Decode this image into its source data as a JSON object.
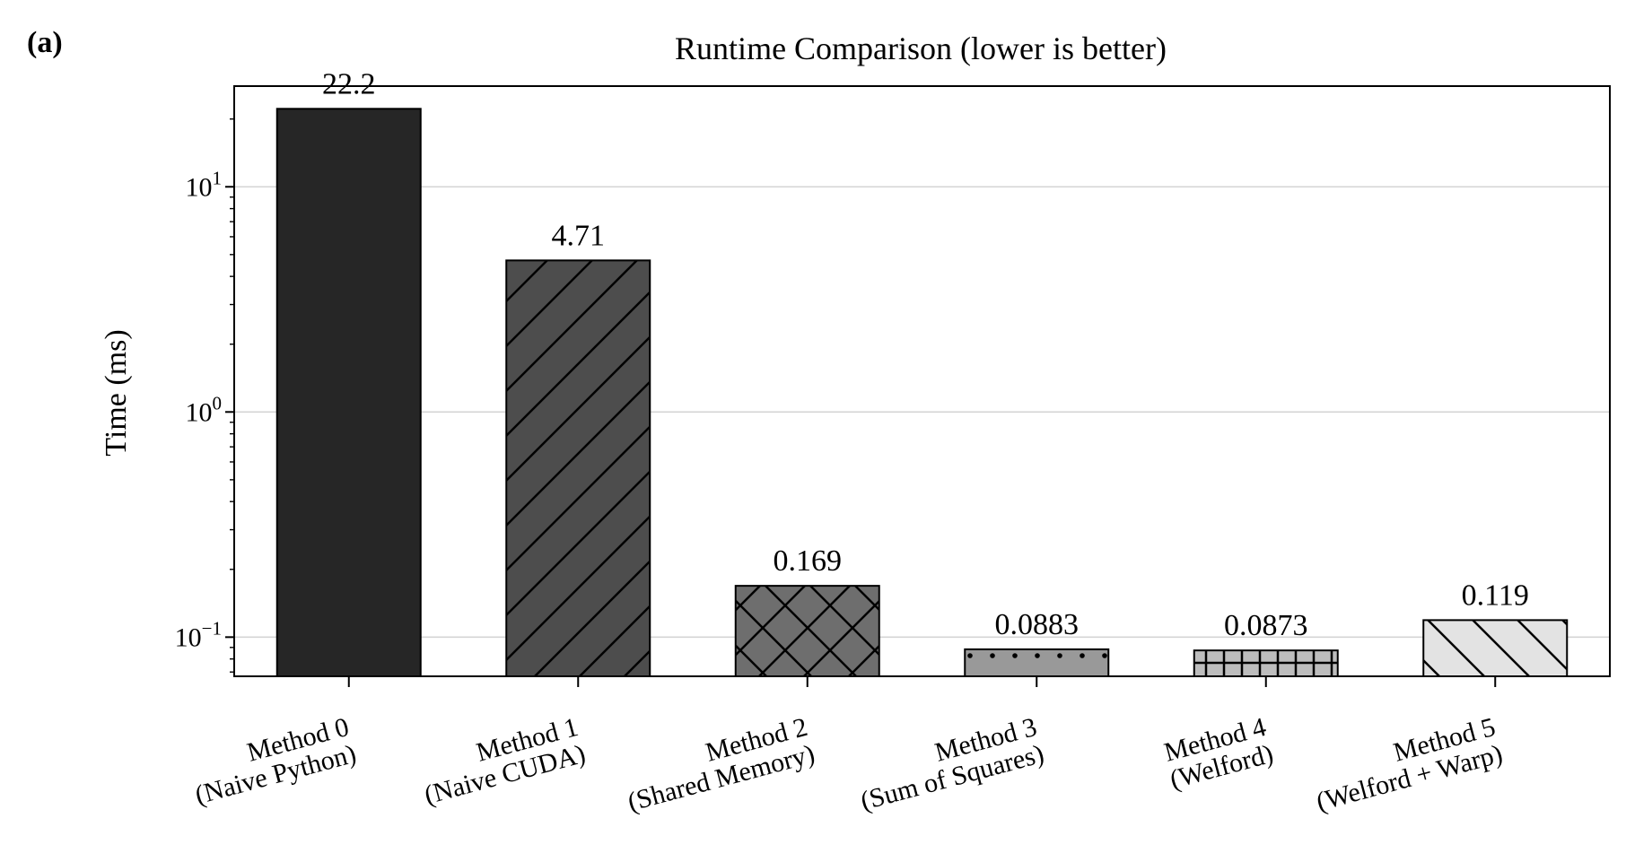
{
  "panel_label": "(a)",
  "chart_data": {
    "type": "bar",
    "title": "Runtime Comparison (lower is better)",
    "xlabel": "",
    "ylabel": "Time (ms)",
    "yscale": "log",
    "ylim": [
      0.067,
      28
    ],
    "yticks": [
      {
        "value": 0.1,
        "base": "10",
        "exp": "−1"
      },
      {
        "value": 1,
        "base": "10",
        "exp": "0"
      },
      {
        "value": 10,
        "base": "10",
        "exp": "1"
      }
    ],
    "grid": "horizontal",
    "categories": [
      [
        "Method 0",
        "(Naive Python)"
      ],
      [
        "Method 1",
        "(Naive CUDA)"
      ],
      [
        "Method 2",
        "(Shared Memory)"
      ],
      [
        "Method 3",
        "(Sum of Squares)"
      ],
      [
        "Method 4",
        "(Welford)"
      ],
      [
        "Method 5",
        "(Welford + Warp)"
      ]
    ],
    "values": [
      22.2,
      4.71,
      0.169,
      0.0883,
      0.0873,
      0.119
    ],
    "value_labels": [
      "22.2",
      "4.71",
      "0.169",
      "0.0883",
      "0.0873",
      "0.119"
    ],
    "colors": [
      "#262626",
      "#4d4d4d",
      "#6e6e6e",
      "#999999",
      "#bdbdbd",
      "#e3e3e3"
    ],
    "hatches": [
      "none",
      "forward-diagonal",
      "cross-diagonal",
      "dots",
      "grid",
      "back-diagonal"
    ]
  }
}
